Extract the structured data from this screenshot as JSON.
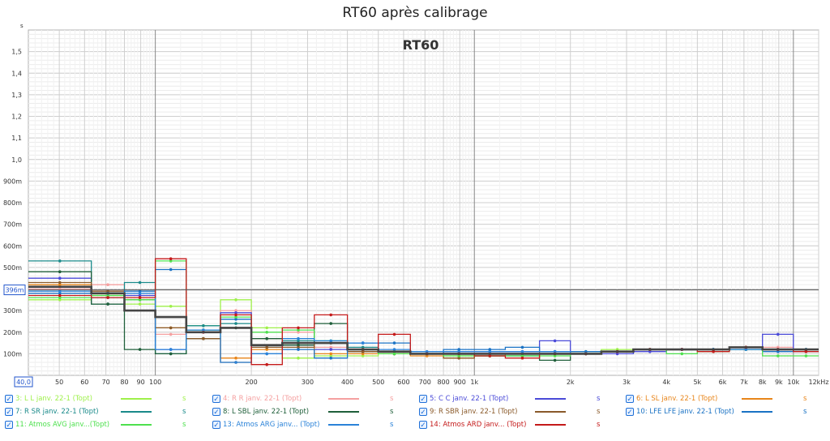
{
  "chart_data": {
    "type": "line",
    "title": "RT60 après calibrage",
    "watermark": "RT60",
    "y_unit_label": "s",
    "cursor_label": "396m",
    "cursor_value": 0.396,
    "x_start_label": "40,0",
    "xlim": [
      40,
      12000
    ],
    "ylim": [
      0,
      1.6
    ],
    "x_log": true,
    "grid": true,
    "y_ticks": [
      {
        "v": 0.1,
        "label": "100m"
      },
      {
        "v": 0.2,
        "label": "200m"
      },
      {
        "v": 0.3,
        "label": "300m"
      },
      {
        "v": 0.4,
        "label": "400m"
      },
      {
        "v": 0.5,
        "label": "500m"
      },
      {
        "v": 0.6,
        "label": "600m"
      },
      {
        "v": 0.7,
        "label": "700m"
      },
      {
        "v": 0.8,
        "label": "800m"
      },
      {
        "v": 0.9,
        "label": "900m"
      },
      {
        "v": 1.0,
        "label": "1,0"
      },
      {
        "v": 1.1,
        "label": "1,1"
      },
      {
        "v": 1.2,
        "label": "1,2"
      },
      {
        "v": 1.3,
        "label": "1,3"
      },
      {
        "v": 1.4,
        "label": "1,4"
      },
      {
        "v": 1.5,
        "label": "1,5"
      }
    ],
    "x_ticks": [
      {
        "v": 50,
        "label": "50"
      },
      {
        "v": 60,
        "label": "60"
      },
      {
        "v": 70,
        "label": "70"
      },
      {
        "v": 80,
        "label": "80"
      },
      {
        "v": 90,
        "label": "90"
      },
      {
        "v": 100,
        "label": "100"
      },
      {
        "v": 200,
        "label": "200"
      },
      {
        "v": 300,
        "label": "300"
      },
      {
        "v": 400,
        "label": "400"
      },
      {
        "v": 500,
        "label": "500"
      },
      {
        "v": 600,
        "label": "600"
      },
      {
        "v": 700,
        "label": "700"
      },
      {
        "v": 800,
        "label": "800"
      },
      {
        "v": 900,
        "label": "900"
      },
      {
        "v": 1000,
        "label": "1k"
      },
      {
        "v": 2000,
        "label": "2k"
      },
      {
        "v": 3000,
        "label": "3k"
      },
      {
        "v": 4000,
        "label": "4k"
      },
      {
        "v": 5000,
        "label": "5k"
      },
      {
        "v": 6000,
        "label": "6k"
      },
      {
        "v": 7000,
        "label": "7k"
      },
      {
        "v": 8000,
        "label": "8k"
      },
      {
        "v": 9000,
        "label": "9k"
      },
      {
        "v": 10000,
        "label": "10k"
      },
      {
        "v": 12000,
        "label": "12kHz"
      }
    ],
    "bands": [
      [
        40,
        63
      ],
      [
        63,
        80
      ],
      [
        80,
        100
      ],
      [
        100,
        125
      ],
      [
        125,
        160
      ],
      [
        160,
        200
      ],
      [
        200,
        250
      ],
      [
        250,
        315
      ],
      [
        315,
        400
      ],
      [
        400,
        500
      ],
      [
        500,
        630
      ],
      [
        630,
        800
      ],
      [
        800,
        1000
      ],
      [
        1000,
        1250
      ],
      [
        1250,
        1600
      ],
      [
        1600,
        2000
      ],
      [
        2000,
        2500
      ],
      [
        2500,
        3150
      ],
      [
        3150,
        4000
      ],
      [
        4000,
        5000
      ],
      [
        5000,
        6300
      ],
      [
        6300,
        8000
      ],
      [
        8000,
        10000
      ],
      [
        10000,
        12000
      ]
    ],
    "series": [
      {
        "name": "3: L L janv. 22-1 (Topt)",
        "color": "#9ef04a",
        "values": [
          0.35,
          0.37,
          0.33,
          0.32,
          0.23,
          0.35,
          0.22,
          0.08,
          0.09,
          0.09,
          0.1,
          0.1,
          0.09,
          0.1,
          0.1,
          0.1,
          0.11,
          0.12,
          0.12,
          0.12,
          0.12,
          0.12,
          0.12,
          0.12
        ]
      },
      {
        "name": "4: R R janv. 22-1 (Topt)",
        "color": "#f5a0a0",
        "values": [
          0.4,
          0.42,
          0.37,
          0.19,
          0.21,
          0.3,
          0.17,
          0.2,
          0.13,
          0.12,
          0.11,
          0.1,
          0.1,
          0.1,
          0.1,
          0.1,
          0.1,
          0.11,
          0.12,
          0.12,
          0.12,
          0.13,
          0.13,
          0.12
        ]
      },
      {
        "name": "5: C C janv. 22-1 (Topt)",
        "color": "#4a4ad8",
        "values": [
          0.45,
          0.38,
          0.37,
          0.12,
          0.2,
          0.29,
          0.13,
          0.14,
          0.12,
          0.11,
          0.1,
          0.1,
          0.11,
          0.11,
          0.11,
          0.16,
          0.1,
          0.1,
          0.11,
          0.12,
          0.12,
          0.12,
          0.19,
          0.11
        ]
      },
      {
        "name": "6: L SL janv. 22-1 (Topt)",
        "color": "#e8851a",
        "values": [
          0.42,
          0.38,
          0.35,
          0.22,
          0.17,
          0.08,
          0.12,
          0.15,
          0.1,
          0.1,
          0.1,
          0.09,
          0.08,
          0.09,
          0.1,
          0.1,
          0.1,
          0.11,
          0.12,
          0.12,
          0.12,
          0.12,
          0.12,
          0.11
        ]
      },
      {
        "name": "7: R SR janv. 22-1 (Topt)",
        "color": "#1a8a8a",
        "values": [
          0.53,
          0.33,
          0.43,
          0.1,
          0.23,
          0.24,
          0.13,
          0.16,
          0.15,
          0.13,
          0.11,
          0.1,
          0.1,
          0.09,
          0.09,
          0.1,
          0.1,
          0.11,
          0.12,
          0.12,
          0.12,
          0.13,
          0.12,
          0.12
        ]
      },
      {
        "name": "8: L SBL janv. 22-1 (Topt)",
        "color": "#1f5f3a",
        "values": [
          0.48,
          0.33,
          0.12,
          0.1,
          0.17,
          0.22,
          0.17,
          0.14,
          0.24,
          0.11,
          0.1,
          0.1,
          0.1,
          0.09,
          0.09,
          0.07,
          0.1,
          0.11,
          0.12,
          0.12,
          0.12,
          0.13,
          0.12,
          0.12
        ]
      },
      {
        "name": "9: R SBR janv. 22-1 (Topt)",
        "color": "#8a5a2a",
        "values": [
          0.43,
          0.39,
          0.35,
          0.22,
          0.17,
          0.06,
          0.13,
          0.13,
          0.15,
          0.11,
          0.1,
          0.1,
          0.08,
          0.1,
          0.1,
          0.11,
          0.1,
          0.11,
          0.12,
          0.12,
          0.12,
          0.13,
          0.12,
          0.12
        ]
      },
      {
        "name": "10: LFE LFE janv. 22-1 (Topt)",
        "color": "#1a72c4",
        "values": [
          0.38,
          0.36,
          0.39,
          0.49,
          0.2,
          0.26,
          0.1,
          0.12,
          0.08,
          0.15,
          0.15,
          0.1,
          0.12,
          0.12,
          0.13,
          0.11,
          0.11,
          0.11,
          0.12,
          0.12,
          0.12,
          0.12,
          0.11,
          0.12
        ]
      },
      {
        "name": "11: Atmos AVG janv...(Topt)",
        "color": "#4ee04e",
        "values": [
          0.36,
          0.37,
          0.35,
          0.53,
          0.21,
          0.27,
          0.2,
          0.21,
          0.16,
          0.12,
          0.1,
          0.1,
          0.09,
          0.09,
          0.09,
          0.09,
          0.1,
          0.11,
          0.12,
          0.1,
          0.11,
          0.12,
          0.09,
          0.09
        ]
      },
      {
        "name": "13: Atmos ARG janv... (Topt)",
        "color": "#2a82d8",
        "values": [
          0.39,
          0.38,
          0.38,
          0.12,
          0.21,
          0.06,
          0.1,
          0.17,
          0.16,
          0.15,
          0.12,
          0.11,
          0.11,
          0.11,
          0.11,
          0.11,
          0.1,
          0.11,
          0.12,
          0.12,
          0.12,
          0.12,
          0.12,
          0.11
        ]
      },
      {
        "name": "14: Atmos ARD janv... (Topt)",
        "color": "#c41a1a",
        "values": [
          0.37,
          0.36,
          0.36,
          0.54,
          0.2,
          0.28,
          0.05,
          0.22,
          0.28,
          0.12,
          0.19,
          0.1,
          0.1,
          0.09,
          0.08,
          0.1,
          0.1,
          0.11,
          0.12,
          0.12,
          0.11,
          0.13,
          0.12,
          0.11
        ]
      },
      {
        "name": "",
        "color": "#444444",
        "values": [
          0.41,
          0.38,
          0.3,
          0.27,
          0.2,
          0.22,
          0.14,
          0.15,
          0.15,
          0.12,
          0.11,
          0.1,
          0.1,
          0.1,
          0.1,
          0.1,
          0.1,
          0.11,
          0.12,
          0.12,
          0.12,
          0.13,
          0.12,
          0.12
        ]
      }
    ],
    "legend": [
      {
        "label": "3: L L janv. 22-1 (Topt)",
        "color": "#9ef04a",
        "unit": "s"
      },
      {
        "label": "4: R R janv. 22-1 (Topt)",
        "color": "#f5a0a0",
        "unit": "s"
      },
      {
        "label": "5: C C janv. 22-1 (Topt)",
        "color": "#4a4ad8",
        "unit": "s"
      },
      {
        "label": "6: L SL janv. 22-1 (Topt)",
        "color": "#e8851a",
        "unit": "s"
      },
      {
        "label": "7: R SR janv. 22-1 (Topt)",
        "color": "#1a8a8a",
        "unit": "s"
      },
      {
        "label": "8: L SBL janv. 22-1 (Topt)",
        "color": "#1f5f3a",
        "unit": "s"
      },
      {
        "label": "9: R SBR janv. 22-1 (Topt)",
        "color": "#8a5a2a",
        "unit": "s"
      },
      {
        "label": "10: LFE LFE janv. 22-1 (Topt)",
        "color": "#1a72c4",
        "unit": "s"
      },
      {
        "label": "11: Atmos AVG janv...(Topt)",
        "color": "#4ee04e",
        "unit": "s"
      },
      {
        "label": "13: Atmos ARG janv... (Topt)",
        "color": "#2a82d8",
        "unit": "s"
      },
      {
        "label": "14: Atmos ARD janv... (Topt)",
        "color": "#c41a1a",
        "unit": "s"
      }
    ]
  }
}
